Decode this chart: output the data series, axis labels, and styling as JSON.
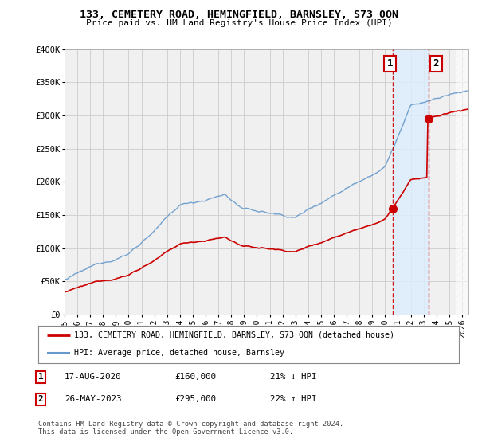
{
  "title": "133, CEMETERY ROAD, HEMINGFIELD, BARNSLEY, S73 0QN",
  "subtitle": "Price paid vs. HM Land Registry's House Price Index (HPI)",
  "legend_line1": "133, CEMETERY ROAD, HEMINGFIELD, BARNSLEY, S73 0QN (detached house)",
  "legend_line2": "HPI: Average price, detached house, Barnsley",
  "annotation1_label": "1",
  "annotation1_date": "17-AUG-2020",
  "annotation1_price": "£160,000",
  "annotation1_hpi": "21% ↓ HPI",
  "annotation2_label": "2",
  "annotation2_date": "26-MAY-2023",
  "annotation2_price": "£295,000",
  "annotation2_hpi": "22% ↑ HPI",
  "footer": "Contains HM Land Registry data © Crown copyright and database right 2024.\nThis data is licensed under the Open Government Licence v3.0.",
  "red_color": "#cc0000",
  "blue_color": "#6699cc",
  "grid_color": "#cccccc",
  "annotation_vline_color": "#cc0000",
  "bg_color": "#ffffff",
  "plot_bg_color": "#f0f0f0",
  "shade_color": "#ddeeff",
  "ylim": [
    0,
    400000
  ],
  "xlim_start": 1995.0,
  "xlim_end": 2026.5,
  "t1": 2020.625,
  "t2": 2023.375,
  "price1": 160000,
  "price2": 295000
}
